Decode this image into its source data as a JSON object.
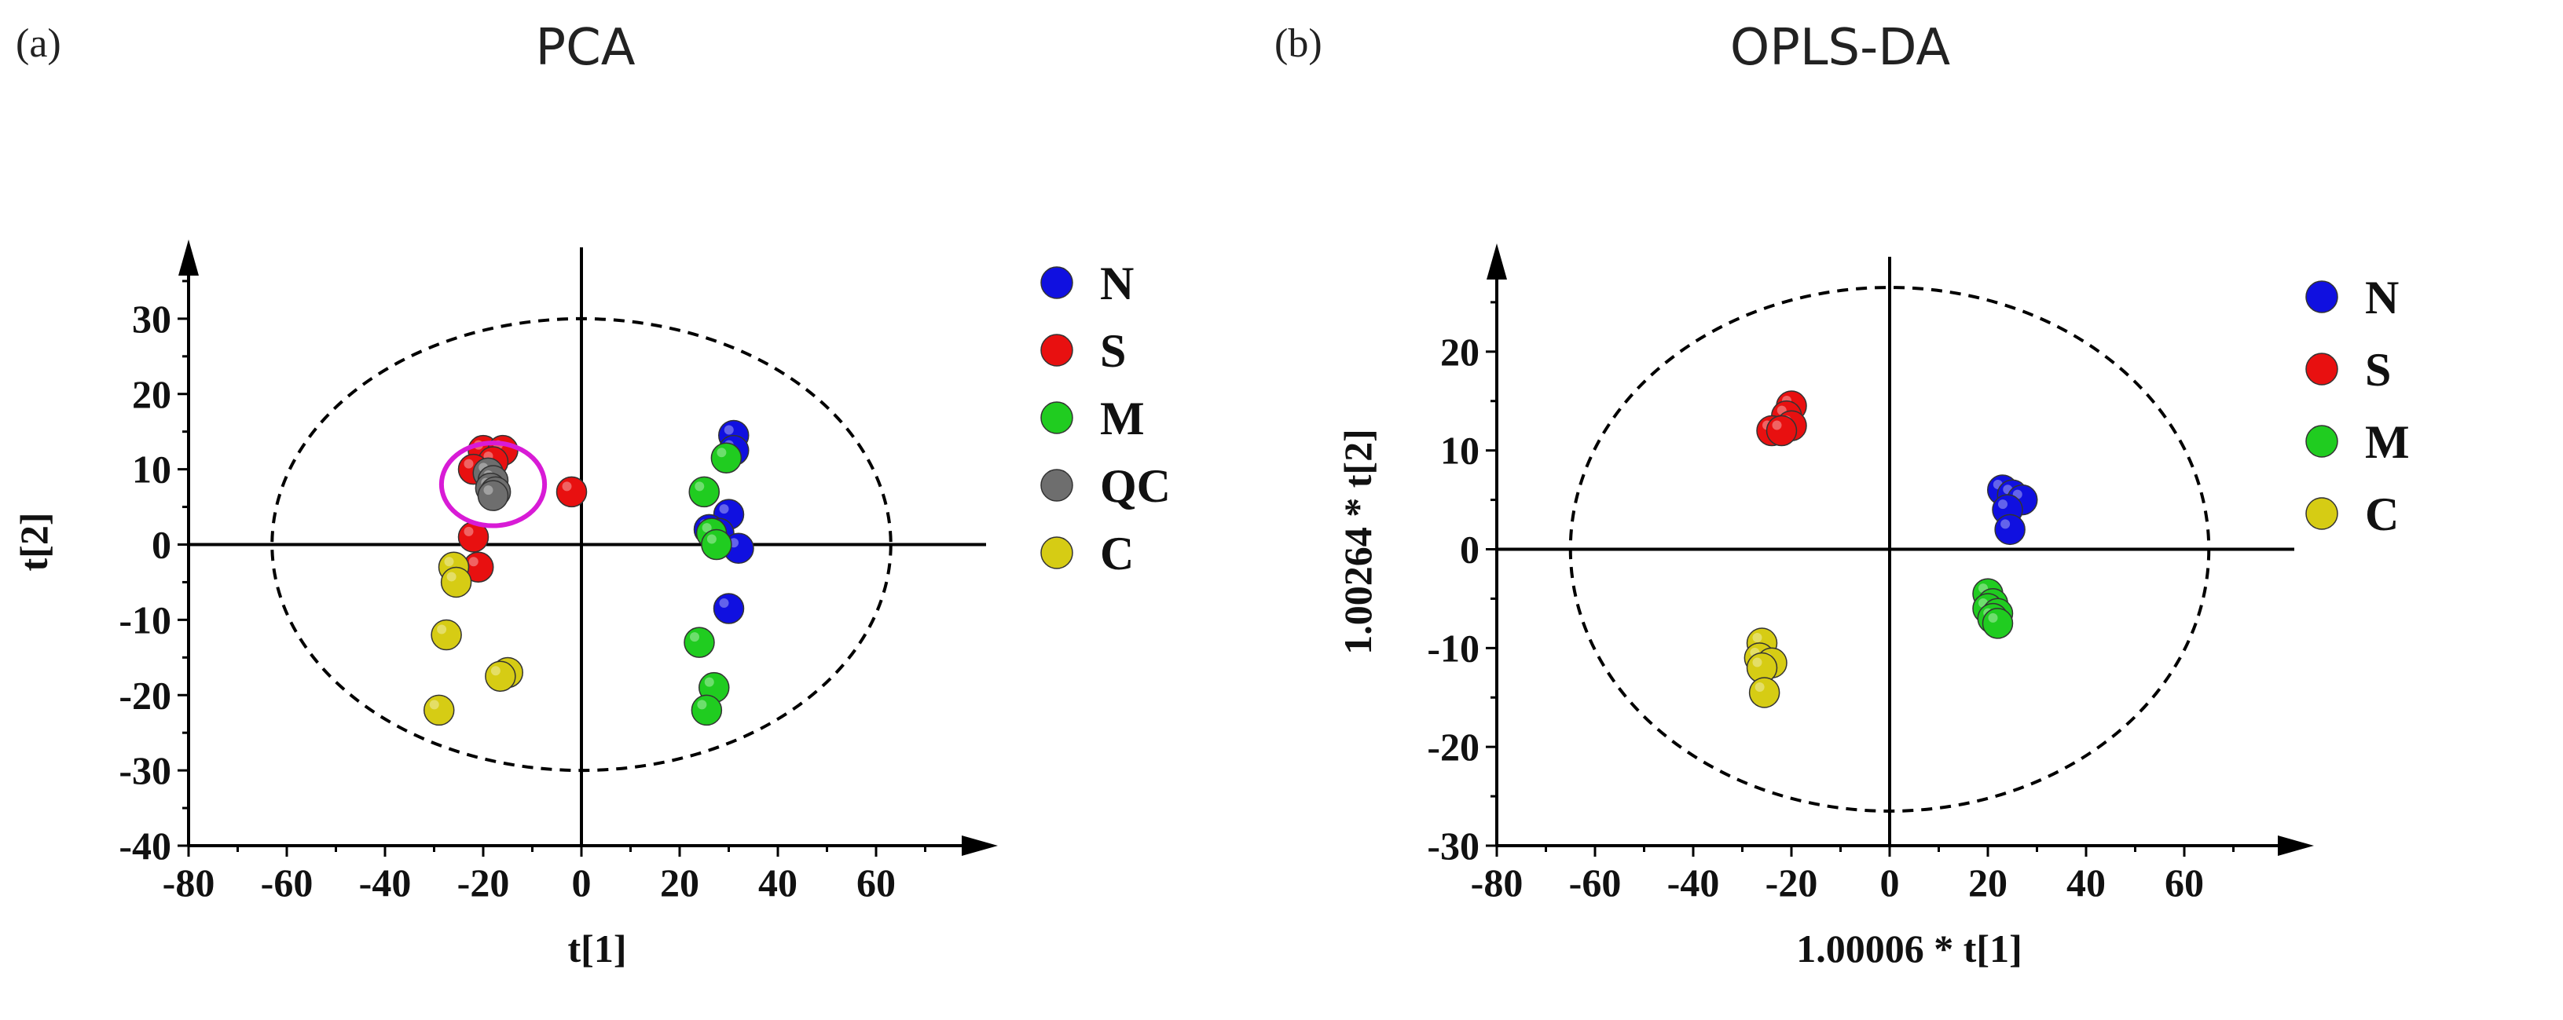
{
  "chart_data": [
    {
      "panel": "(a)",
      "title": "PCA",
      "type": "scatter",
      "xlabel": "t[1]",
      "ylabel": "t[2]",
      "xlim": [
        -80,
        80
      ],
      "ylim": [
        -40,
        40
      ],
      "xticks": [
        "-80",
        "-60",
        "-40",
        "-20",
        "0",
        "20",
        "40",
        "60"
      ],
      "yticks": [
        "-40",
        "-30",
        "-20",
        "-10",
        "0",
        "10",
        "20",
        "30"
      ],
      "ellipse": {
        "rx": 63,
        "ry": 30
      },
      "highlight": {
        "label": "QC cluster",
        "cx": -18,
        "cy": 8,
        "rx": 10.5,
        "ry": 5.5
      },
      "legend": [
        "N",
        "S",
        "M",
        "QC",
        "C"
      ],
      "series": [
        {
          "name": "N",
          "color": "#1010e0",
          "points": [
            [
              31,
              14.5
            ],
            [
              31,
              12.5
            ],
            [
              30,
              4
            ],
            [
              26,
              2
            ],
            [
              28,
              1.5
            ],
            [
              32,
              -0.5
            ],
            [
              30,
              -8.5
            ]
          ]
        },
        {
          "name": "S",
          "color": "#e81010",
          "points": [
            [
              -20,
              12.5
            ],
            [
              -16,
              12.5
            ],
            [
              -18,
              11
            ],
            [
              -22,
              10
            ],
            [
              -2,
              7
            ],
            [
              -22,
              1
            ],
            [
              -21,
              -3
            ]
          ]
        },
        {
          "name": "M",
          "color": "#20cc20",
          "points": [
            [
              29.5,
              11.5
            ],
            [
              25,
              7
            ],
            [
              26.5,
              1.5
            ],
            [
              27.5,
              0
            ],
            [
              24,
              -13
            ],
            [
              27,
              -19
            ],
            [
              25.5,
              -22
            ]
          ]
        },
        {
          "name": "QC",
          "color": "#6e6e6e",
          "points": [
            [
              -19,
              9.5
            ],
            [
              -18,
              8.5
            ],
            [
              -18.5,
              7.5
            ],
            [
              -17.5,
              7
            ],
            [
              -18,
              6.5
            ]
          ]
        },
        {
          "name": "C",
          "color": "#d6cc14",
          "points": [
            [
              -26,
              -3
            ],
            [
              -25.5,
              -5
            ],
            [
              -27.5,
              -12
            ],
            [
              -15,
              -17
            ],
            [
              -16.5,
              -17.5
            ],
            [
              -29,
              -22
            ]
          ]
        }
      ]
    },
    {
      "panel": "(b)",
      "title": "OPLS-DA",
      "type": "scatter",
      "xlabel": "1.00006 * t[1]",
      "ylabel": "1.00264 * t[2]",
      "xlim": [
        -80,
        80
      ],
      "ylim": [
        -30,
        30
      ],
      "xticks": [
        "-80",
        "-60",
        "-40",
        "-20",
        "0",
        "20",
        "40",
        "60"
      ],
      "yticks": [
        "-30",
        "-20",
        "-10",
        "0",
        "10",
        "20"
      ],
      "ellipse": {
        "rx": 65,
        "ry": 26.5
      },
      "legend": [
        "N",
        "S",
        "M",
        "C"
      ],
      "series": [
        {
          "name": "N",
          "color": "#1010e0",
          "points": [
            [
              23,
              6
            ],
            [
              25,
              5.5
            ],
            [
              27,
              5
            ],
            [
              24,
              4
            ],
            [
              24.5,
              2
            ]
          ]
        },
        {
          "name": "S",
          "color": "#e81010",
          "points": [
            [
              -20,
              14.5
            ],
            [
              -21,
              13.5
            ],
            [
              -20,
              12.5
            ],
            [
              -24,
              12
            ],
            [
              -22,
              12
            ]
          ]
        },
        {
          "name": "M",
          "color": "#20cc20",
          "points": [
            [
              20,
              -4.5
            ],
            [
              21,
              -5.5
            ],
            [
              20,
              -6
            ],
            [
              22,
              -6.5
            ],
            [
              21,
              -7
            ],
            [
              22,
              -7.5
            ]
          ]
        },
        {
          "name": "C",
          "color": "#d6cc14",
          "points": [
            [
              -26,
              -9.5
            ],
            [
              -26.5,
              -11
            ],
            [
              -24,
              -11.5
            ],
            [
              -26,
              -12
            ],
            [
              -25.5,
              -14.5
            ]
          ]
        }
      ]
    }
  ]
}
